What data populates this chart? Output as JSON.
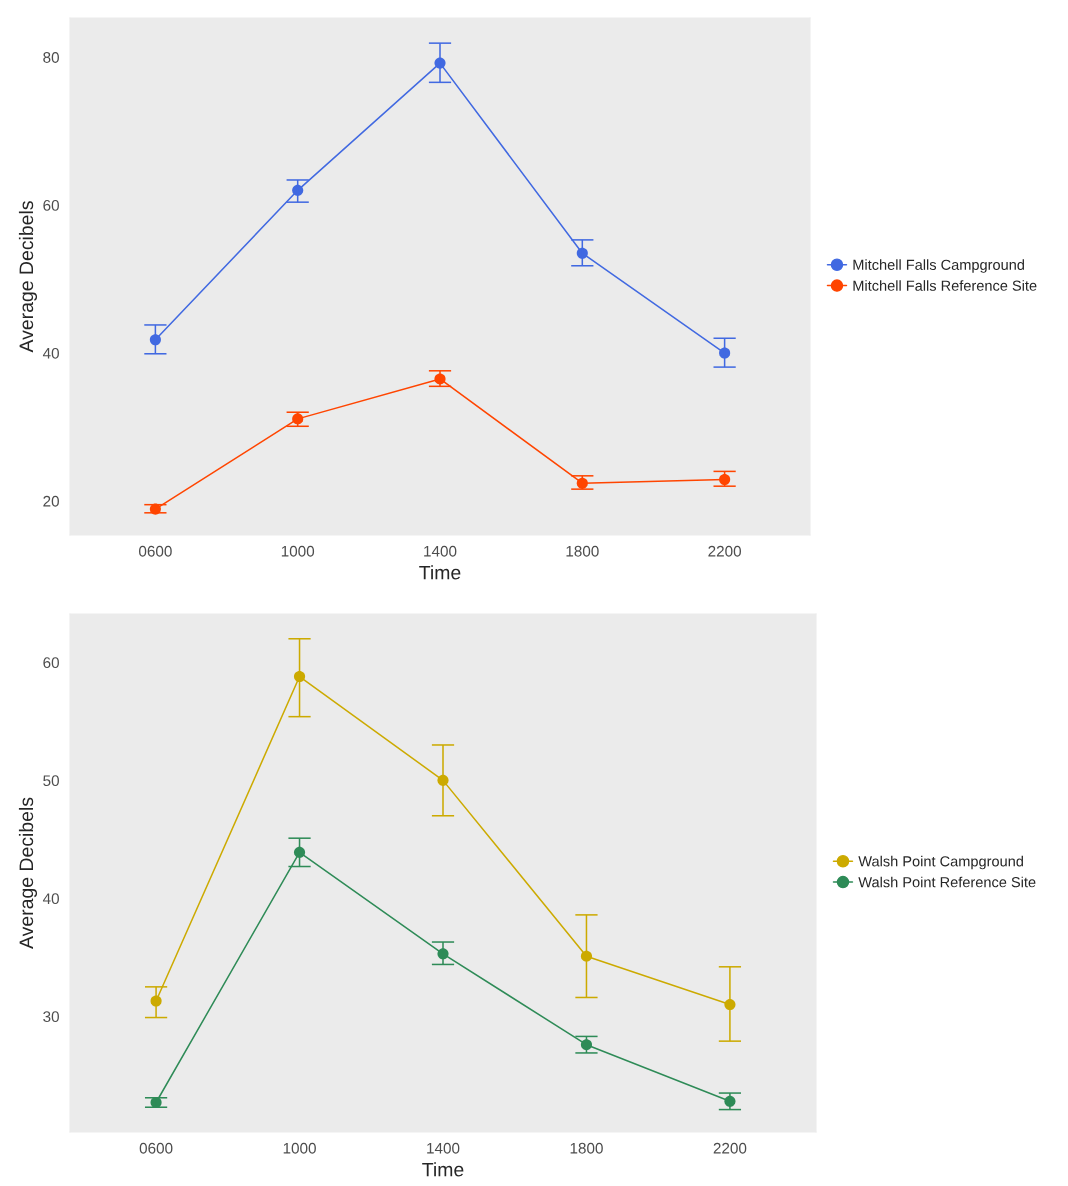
{
  "chart_data": [
    {
      "type": "line",
      "xlabel": "Time",
      "ylabel": "Average Decibels",
      "categories": [
        "0600",
        "1000",
        "1400",
        "1800",
        "2200"
      ],
      "ylim": [
        15.4,
        85.3
      ],
      "yticks": [
        20,
        40,
        60,
        80
      ],
      "grid": false,
      "legend": "right",
      "marker": "circle",
      "series": [
        {
          "name": "Mitchell Falls Campground",
          "color": "#4169e1",
          "values": [
            41.8,
            62.0,
            79.2,
            53.5,
            40.0
          ],
          "errors": [
            [
              39.9,
              43.8
            ],
            [
              60.4,
              63.4
            ],
            [
              76.6,
              81.9
            ],
            [
              51.8,
              55.3
            ],
            [
              38.1,
              42.0
            ]
          ]
        },
        {
          "name": "Mitchell Falls Reference Site",
          "color": "#ff4500",
          "values": [
            18.9,
            31.1,
            36.5,
            22.4,
            22.9
          ],
          "errors": [
            [
              18.4,
              19.5
            ],
            [
              30.1,
              32.0
            ],
            [
              35.5,
              37.6
            ],
            [
              21.6,
              23.4
            ],
            [
              22.0,
              24.0
            ]
          ]
        }
      ]
    },
    {
      "type": "line",
      "xlabel": "Time",
      "ylabel": "Average Decibels",
      "categories": [
        "0600",
        "1000",
        "1400",
        "1800",
        "2200"
      ],
      "ylim": [
        20.2,
        64.1
      ],
      "yticks": [
        30,
        40,
        50,
        60
      ],
      "grid": false,
      "legend": "right",
      "marker": "circle",
      "series": [
        {
          "name": "Walsh Point Campground",
          "color": "#ccaa00",
          "values": [
            31.3,
            58.8,
            50.0,
            35.1,
            31.0
          ],
          "errors": [
            [
              29.9,
              32.5
            ],
            [
              55.4,
              62.0
            ],
            [
              47.0,
              53.0
            ],
            [
              31.6,
              38.6
            ],
            [
              27.9,
              34.2
            ]
          ]
        },
        {
          "name": "Walsh Point Reference Site",
          "color": "#2e8b57",
          "values": [
            22.7,
            43.9,
            35.3,
            27.6,
            22.8
          ],
          "errors": [
            [
              22.3,
              23.1
            ],
            [
              42.7,
              45.1
            ],
            [
              34.4,
              36.3
            ],
            [
              26.9,
              28.3
            ],
            [
              22.1,
              23.5
            ]
          ]
        }
      ]
    }
  ]
}
